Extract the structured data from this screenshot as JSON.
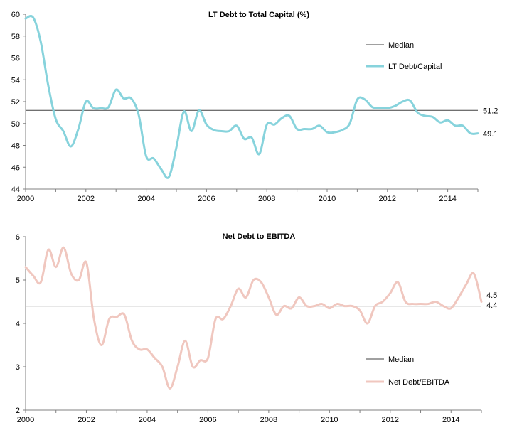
{
  "colors": {
    "debt_capital": "#87d3dc",
    "net_debt": "#f0c7bf",
    "median": "#404040"
  },
  "chart_data": [
    {
      "type": "line",
      "title": "LT Debt to Total Capital (%)",
      "xlabel": "",
      "ylabel": "",
      "xlim": [
        2000,
        2015
      ],
      "ylim": [
        44,
        60
      ],
      "yticks": [
        44,
        46,
        48,
        50,
        52,
        54,
        56,
        58,
        60
      ],
      "xticks": [
        2000,
        2002,
        2004,
        2006,
        2008,
        2010,
        2012,
        2014
      ],
      "median": 51.2,
      "median_label": "51.2",
      "last_value_label": "49.1",
      "legend": {
        "position": "top-right",
        "entries": [
          "Median",
          "LT Debt/Capital"
        ]
      },
      "series": [
        {
          "name": "LT Debt/Capital",
          "x": [
            2000.0,
            2000.25,
            2000.5,
            2000.75,
            2001.0,
            2001.25,
            2001.5,
            2001.75,
            2002.0,
            2002.25,
            2002.5,
            2002.75,
            2003.0,
            2003.25,
            2003.5,
            2003.75,
            2004.0,
            2004.25,
            2004.5,
            2004.75,
            2005.0,
            2005.25,
            2005.5,
            2005.75,
            2006.0,
            2006.25,
            2006.5,
            2006.75,
            2007.0,
            2007.25,
            2007.5,
            2007.75,
            2008.0,
            2008.25,
            2008.5,
            2008.75,
            2009.0,
            2009.25,
            2009.5,
            2009.75,
            2010.0,
            2010.25,
            2010.5,
            2010.75,
            2011.0,
            2011.25,
            2011.5,
            2011.75,
            2012.0,
            2012.25,
            2012.5,
            2012.75,
            2013.0,
            2013.25,
            2013.5,
            2013.75,
            2014.0,
            2014.25,
            2014.5,
            2014.75,
            2015.0
          ],
          "values": [
            59.6,
            59.7,
            57.5,
            53.5,
            50.4,
            49.3,
            47.9,
            49.5,
            52.0,
            51.4,
            51.4,
            51.5,
            53.1,
            52.3,
            52.3,
            50.8,
            47.0,
            46.8,
            45.8,
            45.1,
            47.8,
            51.1,
            49.3,
            51.2,
            49.9,
            49.4,
            49.3,
            49.3,
            49.8,
            48.6,
            48.7,
            47.2,
            49.9,
            49.9,
            50.5,
            50.7,
            49.5,
            49.5,
            49.5,
            49.8,
            49.2,
            49.2,
            49.4,
            50.0,
            52.2,
            52.2,
            51.5,
            51.4,
            51.4,
            51.6,
            52.0,
            52.1,
            51.0,
            50.7,
            50.6,
            50.1,
            50.3,
            49.8,
            49.8,
            49.1,
            49.1
          ]
        }
      ]
    },
    {
      "type": "line",
      "title": "Net Debt to EBITDA",
      "xlabel": "",
      "ylabel": "",
      "xlim": [
        2000,
        2015
      ],
      "ylim": [
        2,
        6
      ],
      "yticks": [
        2,
        3,
        4,
        5,
        6
      ],
      "xticks": [
        2000,
        2002,
        2004,
        2006,
        2008,
        2010,
        2012,
        2014
      ],
      "median": 4.4,
      "median_label": "4.4",
      "last_value_label": "4.5",
      "legend": {
        "position": "bottom-right",
        "entries": [
          "Median",
          "Net Debt/EBITDA"
        ]
      },
      "series": [
        {
          "name": "Net Debt/EBITDA",
          "x": [
            2000.0,
            2000.25,
            2000.5,
            2000.75,
            2001.0,
            2001.25,
            2001.5,
            2001.75,
            2002.0,
            2002.25,
            2002.5,
            2002.75,
            2003.0,
            2003.25,
            2003.5,
            2003.75,
            2004.0,
            2004.25,
            2004.5,
            2004.75,
            2005.0,
            2005.25,
            2005.5,
            2005.75,
            2006.0,
            2006.25,
            2006.5,
            2006.75,
            2007.0,
            2007.25,
            2007.5,
            2007.75,
            2008.0,
            2008.25,
            2008.5,
            2008.75,
            2009.0,
            2009.25,
            2009.5,
            2009.75,
            2010.0,
            2010.25,
            2010.5,
            2010.75,
            2011.0,
            2011.25,
            2011.5,
            2011.75,
            2012.0,
            2012.25,
            2012.5,
            2012.75,
            2013.0,
            2013.25,
            2013.5,
            2013.75,
            2014.0,
            2014.25,
            2014.5,
            2014.75,
            2015.0
          ],
          "values": [
            5.3,
            5.1,
            4.95,
            5.7,
            5.3,
            5.75,
            5.15,
            5.0,
            5.4,
            4.1,
            3.5,
            4.1,
            4.15,
            4.2,
            3.6,
            3.4,
            3.4,
            3.2,
            3.0,
            2.5,
            3.0,
            3.6,
            3.0,
            3.15,
            3.2,
            4.1,
            4.1,
            4.4,
            4.8,
            4.6,
            5.0,
            4.95,
            4.6,
            4.2,
            4.4,
            4.35,
            4.6,
            4.4,
            4.4,
            4.45,
            4.35,
            4.45,
            4.4,
            4.4,
            4.3,
            4.0,
            4.4,
            4.5,
            4.7,
            4.95,
            4.5,
            4.45,
            4.45,
            4.45,
            4.5,
            4.4,
            4.35,
            4.6,
            4.9,
            5.15,
            4.5
          ]
        }
      ]
    }
  ]
}
